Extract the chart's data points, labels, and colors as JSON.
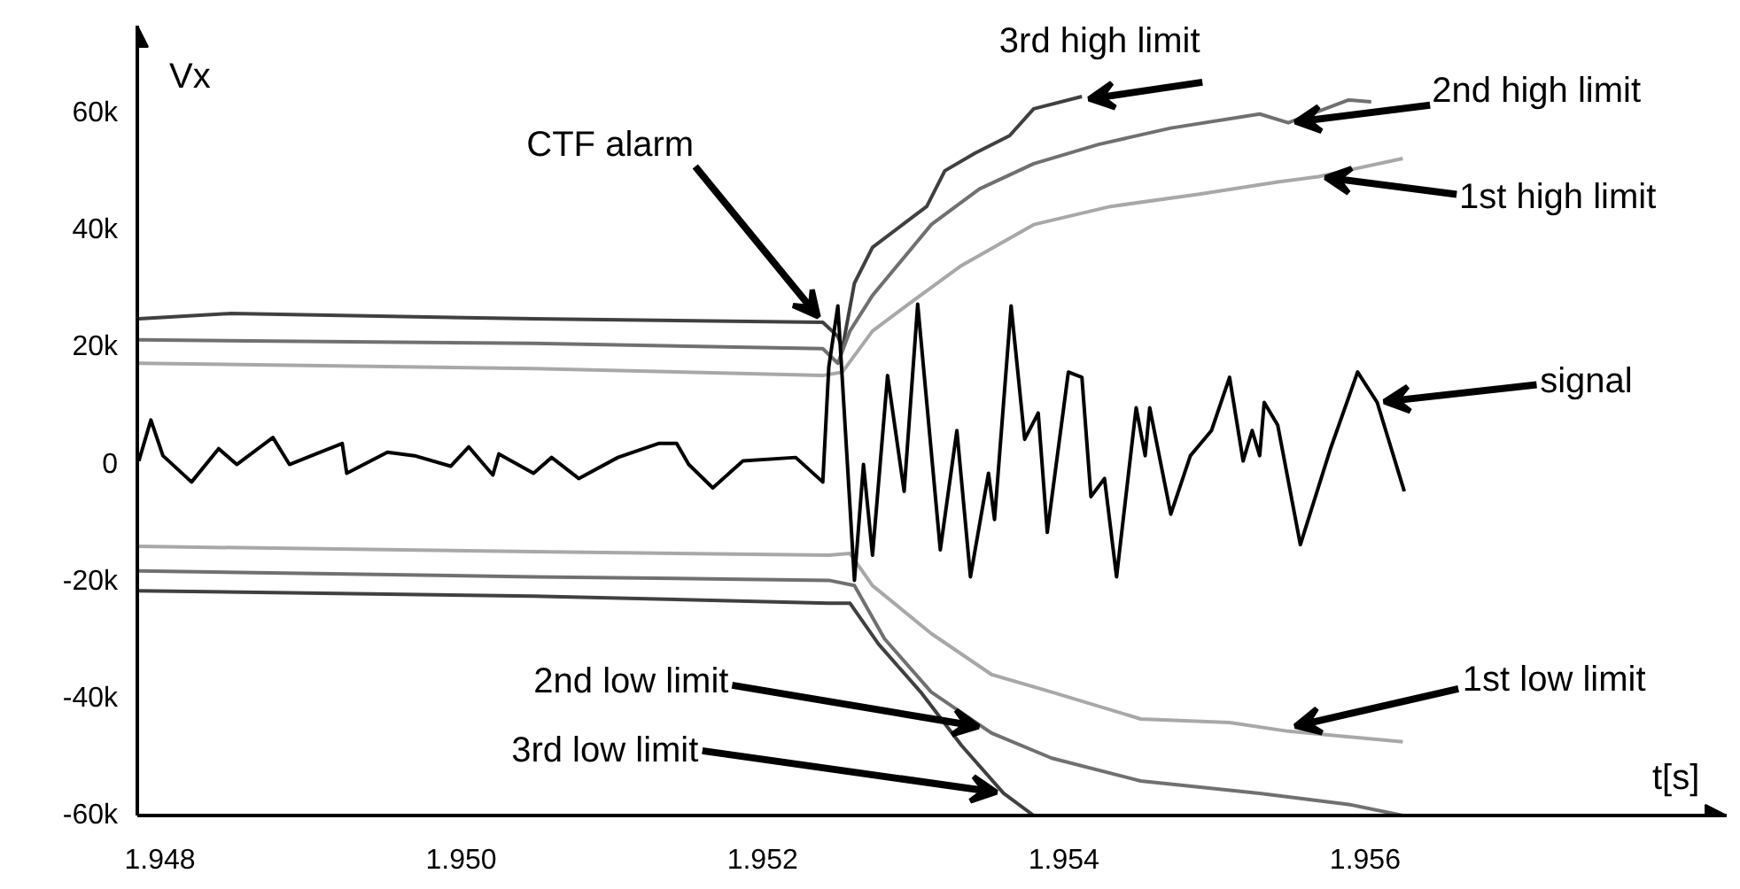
{
  "chart_data": {
    "type": "line",
    "xlabel": "t[s]",
    "ylabel": "Vx",
    "xlim": [
      1.94785,
      1.9584
    ],
    "ylim": [
      -60000,
      75000
    ],
    "xticks": [
      1.948,
      {
        "value": 1.95,
        "label": "1.950"
      },
      1.952,
      1.954,
      1.956
    ],
    "yticks": [
      {
        "value": -60000,
        "label": "-60k"
      },
      {
        "value": -40000,
        "label": "-40k"
      },
      {
        "value": -20000,
        "label": "-20k"
      },
      {
        "value": 0,
        "label": "0"
      },
      {
        "value": 20000,
        "label": "20k"
      },
      {
        "value": 40000,
        "label": "40k"
      },
      {
        "value": 60000,
        "label": "60k"
      }
    ],
    "grid": false,
    "marker": "none",
    "line_style": "solid",
    "series": [
      {
        "color": "#404040",
        "x": [
          1.94786,
          1.94847,
          1.95048,
          1.9524,
          1.9525,
          1.95253,
          1.95261,
          1.95273,
          1.95293,
          1.95309,
          1.95321,
          1.95341,
          1.95364,
          1.9538,
          1.95412
        ],
        "values": [
          24900,
          25800,
          24900,
          24300,
          21900,
          19800,
          31000,
          37100,
          41000,
          44100,
          50200,
          53200,
          56200,
          60800,
          62900
        ]
      },
      {
        "color": "#707070",
        "x": [
          1.94786,
          1.95048,
          1.9524,
          1.9525,
          1.95258,
          1.95273,
          1.95312,
          1.95344,
          1.9538,
          1.95423,
          1.95471,
          1.9553,
          1.95549,
          1.95589,
          1.95604
        ],
        "values": [
          21300,
          20700,
          19800,
          17300,
          22800,
          28900,
          41000,
          47100,
          51400,
          54700,
          57500,
          59900,
          58400,
          62300,
          62000
        ]
      },
      {
        "color": "#a8a8a8",
        "x": [
          1.94786,
          1.95048,
          1.9524,
          1.95253,
          1.95273,
          1.953,
          1.95332,
          1.9538,
          1.95431,
          1.9549,
          1.95542,
          1.95569,
          1.95625
        ],
        "values": [
          17300,
          16400,
          15200,
          15800,
          22800,
          28000,
          34000,
          41000,
          44100,
          46200,
          48300,
          49200,
          52300
        ]
      },
      {
        "color": "#a8a8a8",
        "x": [
          1.94786,
          1.95048,
          1.95244,
          1.95258,
          1.95273,
          1.95312,
          1.95352,
          1.95392,
          1.95451,
          1.9551,
          1.95549,
          1.95625
        ],
        "values": [
          -14000,
          -14900,
          -15500,
          -15200,
          -20700,
          -28900,
          -35900,
          -38900,
          -43500,
          -44100,
          -45600,
          -47400
        ]
      },
      {
        "color": "#707070",
        "x": [
          1.94786,
          1.95048,
          1.95244,
          1.95261,
          1.95281,
          1.95312,
          1.95352,
          1.95392,
          1.95451,
          1.9553,
          1.95589,
          1.95625
        ],
        "values": [
          -18200,
          -19200,
          -19800,
          -20700,
          -29800,
          -38900,
          -45900,
          -50200,
          -54100,
          -56200,
          -58100,
          -60000
        ]
      },
      {
        "color": "#404040",
        "x": [
          1.94786,
          1.95048,
          1.95244,
          1.95258,
          1.95277,
          1.95305,
          1.95332,
          1.9536,
          1.9538,
          1.95395
        ],
        "values": [
          -21600,
          -22500,
          -23700,
          -23700,
          -30700,
          -38900,
          -48000,
          -56200,
          -60000,
          -60000
        ]
      },
      {
        "color": "#000000",
        "x": [
          1.94786,
          1.94794,
          1.94802,
          1.94821,
          1.94839,
          1.94851,
          1.94875,
          1.94886,
          1.94921,
          1.94924,
          1.94951,
          1.94969,
          1.94993,
          1.95005,
          1.95021,
          1.95025,
          1.95048,
          1.9506,
          1.95078,
          1.95104,
          1.95131,
          1.95143,
          1.95151,
          1.95167,
          1.95187,
          1.95222,
          1.9524,
          1.95244,
          1.9525,
          1.95261,
          1.95267,
          1.95273,
          1.95283,
          1.95294,
          1.95303,
          1.95318,
          1.95329,
          1.95338,
          1.9535,
          1.95354,
          1.95365,
          1.95374,
          1.95383,
          1.95389,
          1.95403,
          1.95412,
          1.95418,
          1.95427,
          1.95435,
          1.95448,
          1.95454,
          1.95457,
          1.95471,
          1.95484,
          1.95498,
          1.9551,
          1.95519,
          1.95525,
          1.9553,
          1.95533,
          1.95542,
          1.95557,
          1.95577,
          1.95595,
          1.95608,
          1.95626
        ],
        "values": [
          600,
          7600,
          1500,
          -3000,
          2700,
          0,
          4600,
          0,
          3600,
          -1500,
          2100,
          1500,
          -300,
          3000,
          -1800,
          1800,
          -1500,
          1200,
          -2400,
          1200,
          3600,
          3600,
          0,
          -4000,
          600,
          1200,
          -3000,
          16700,
          27100,
          -19800,
          0,
          -15500,
          15200,
          -4600,
          27400,
          -14600,
          5800,
          -19200,
          -1500,
          -9400,
          27100,
          4300,
          8800,
          -11600,
          15800,
          14900,
          -5500,
          -2400,
          -19200,
          9700,
          1500,
          9700,
          -8500,
          1500,
          5800,
          14900,
          600,
          5800,
          1500,
          10600,
          6700,
          -13700,
          2700,
          15800,
          10600,
          -4600
        ]
      }
    ],
    "annotations": [
      {
        "text": "CTF alarm",
        "x": 1.9524,
        "y": 24300
      },
      {
        "text": "3rd high limit",
        "x": 1.95412,
        "y": 62300
      },
      {
        "text": "2nd high limit",
        "x": 1.95549,
        "y": 58400
      },
      {
        "text": "1st high limit",
        "x": 1.95569,
        "y": 49200
      },
      {
        "text": "signal",
        "x": 1.95608,
        "y": 10600
      },
      {
        "text": "2nd low limit",
        "x": 1.95348,
        "y": -45000
      },
      {
        "text": "3rd low limit",
        "x": 1.9536,
        "y": -56200
      },
      {
        "text": "1st low limit",
        "x": 1.95549,
        "y": -45000
      }
    ]
  }
}
